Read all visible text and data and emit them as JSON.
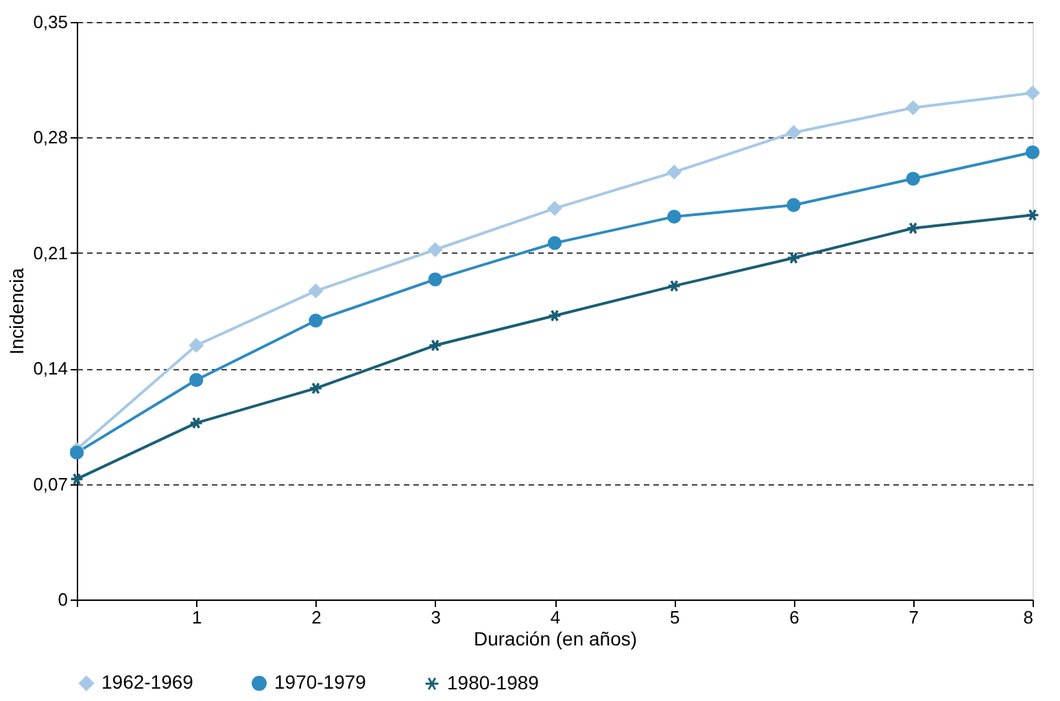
{
  "chart_data": {
    "type": "line",
    "xlabel": "Duración (en años)",
    "ylabel": "Incidencia",
    "x": [
      0,
      1,
      2,
      3,
      4,
      5,
      6,
      7,
      8
    ],
    "series": [
      {
        "name": "1962-1969",
        "color": "#a6c8e6",
        "marker": "diamond",
        "values": [
          0.091,
          0.154,
          0.187,
          0.212,
          0.237,
          0.259,
          0.283,
          0.298,
          0.307
        ]
      },
      {
        "name": "1970-1979",
        "color": "#2e8bc0",
        "marker": "circle",
        "values": [
          0.089,
          0.133,
          0.169,
          0.194,
          0.216,
          0.232,
          0.239,
          0.255,
          0.271
        ]
      },
      {
        "name": "1980-1989",
        "color": "#1a5e75",
        "marker": "cross",
        "values": [
          0.073,
          0.107,
          0.128,
          0.154,
          0.172,
          0.19,
          0.207,
          0.225,
          0.233
        ]
      }
    ],
    "xlim": [
      0,
      8
    ],
    "xticks": [
      {
        "value": 0,
        "label": null
      },
      1,
      2,
      3,
      4,
      5,
      6,
      7,
      8
    ],
    "ylim": [
      0,
      0.35
    ],
    "yticks": [
      0,
      {
        "value": 0.07,
        "label": "0,07"
      },
      {
        "value": 0.14,
        "label": "0,14"
      },
      {
        "value": 0.21,
        "label": "0,21"
      },
      {
        "value": 0.28,
        "label": "0,28"
      },
      {
        "value": 0.35,
        "label": "0,35"
      }
    ],
    "grid": "y",
    "legend": "bottom",
    "line_style": "solid"
  }
}
